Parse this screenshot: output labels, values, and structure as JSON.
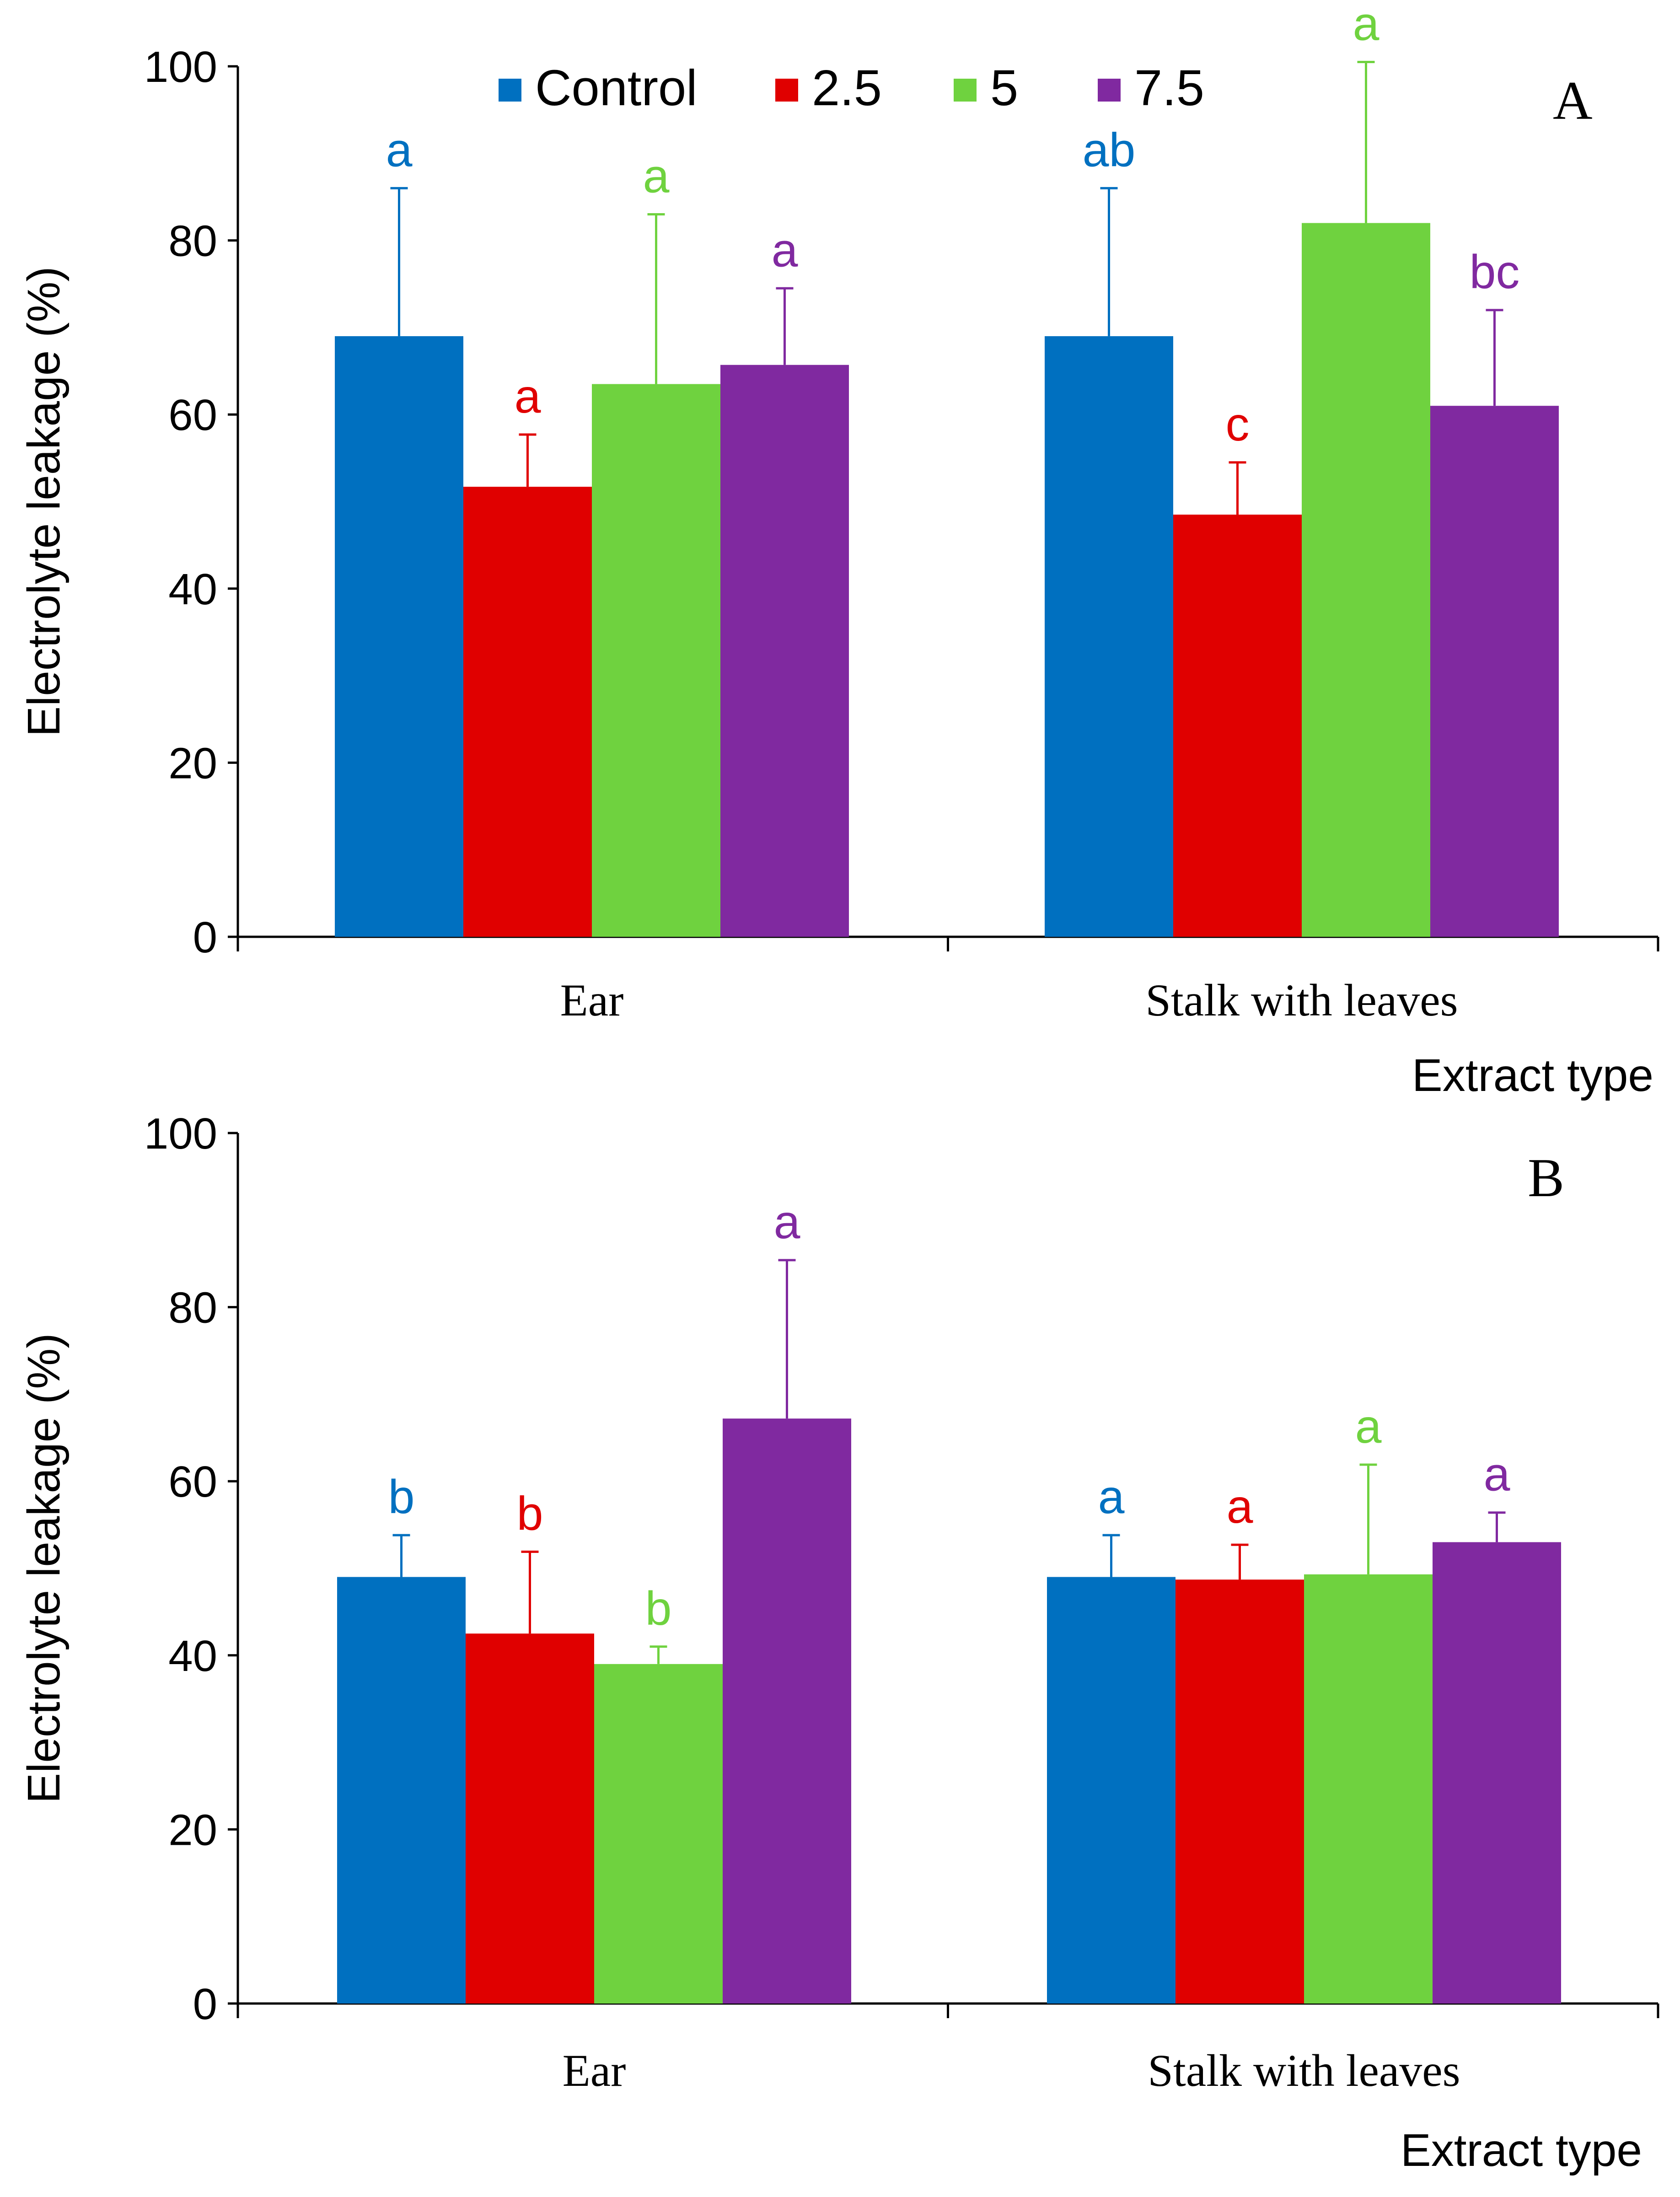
{
  "colors": {
    "Control": "#0070C0",
    "2.5": "#E00000",
    "5": "#6FD23F",
    "7.5": "#8029A0",
    "axis": "#000000"
  },
  "chart_data": [
    {
      "type": "bar",
      "panel": "A",
      "categories": [
        "Ear",
        "Stalk with leaves"
      ],
      "xlabel": "Extract type",
      "ylabel": "Electrolyte leakage (%)",
      "ylim": [
        0,
        100
      ],
      "yticks": [
        "0",
        "20",
        "40",
        "60",
        "80",
        "100"
      ],
      "legend": [
        "Control",
        "2.5",
        "5",
        "7.5"
      ],
      "legend_position": "top",
      "series": [
        {
          "name": "Control",
          "values": [
            69,
            69
          ],
          "errors": [
            17,
            17
          ],
          "letters": [
            "a",
            "ab"
          ]
        },
        {
          "name": "2.5",
          "values": [
            51.7,
            48.5
          ],
          "errors": [
            6,
            6
          ],
          "letters": [
            "a",
            "c"
          ]
        },
        {
          "name": "5",
          "values": [
            63.5,
            82
          ],
          "errors": [
            19.5,
            18.5
          ],
          "letters": [
            "a",
            "a"
          ]
        },
        {
          "name": "7.5",
          "values": [
            65.7,
            61
          ],
          "errors": [
            8.8,
            11
          ],
          "letters": [
            "a",
            "bc"
          ]
        }
      ]
    },
    {
      "type": "bar",
      "panel": "B",
      "categories": [
        "Ear",
        "Stalk with leaves"
      ],
      "xlabel": "Extract type",
      "ylabel": "Electrolyte leakage (%)",
      "ylim": [
        0,
        100
      ],
      "yticks": [
        "0",
        "20",
        "40",
        "60",
        "80",
        "100"
      ],
      "series": [
        {
          "name": "Control",
          "values": [
            49,
            49
          ],
          "errors": [
            4.8,
            4.8
          ],
          "letters": [
            "b",
            "a"
          ]
        },
        {
          "name": "2.5",
          "values": [
            42.5,
            48.7
          ],
          "errors": [
            9.4,
            4
          ],
          "letters": [
            "b",
            "a"
          ]
        },
        {
          "name": "5",
          "values": [
            39,
            49.3
          ],
          "errors": [
            2,
            12.6
          ],
          "letters": [
            "b",
            "a"
          ]
        },
        {
          "name": "7.5",
          "values": [
            67.2,
            53
          ],
          "errors": [
            18.2,
            3.4
          ],
          "letters": [
            "a",
            "a"
          ]
        }
      ]
    }
  ]
}
